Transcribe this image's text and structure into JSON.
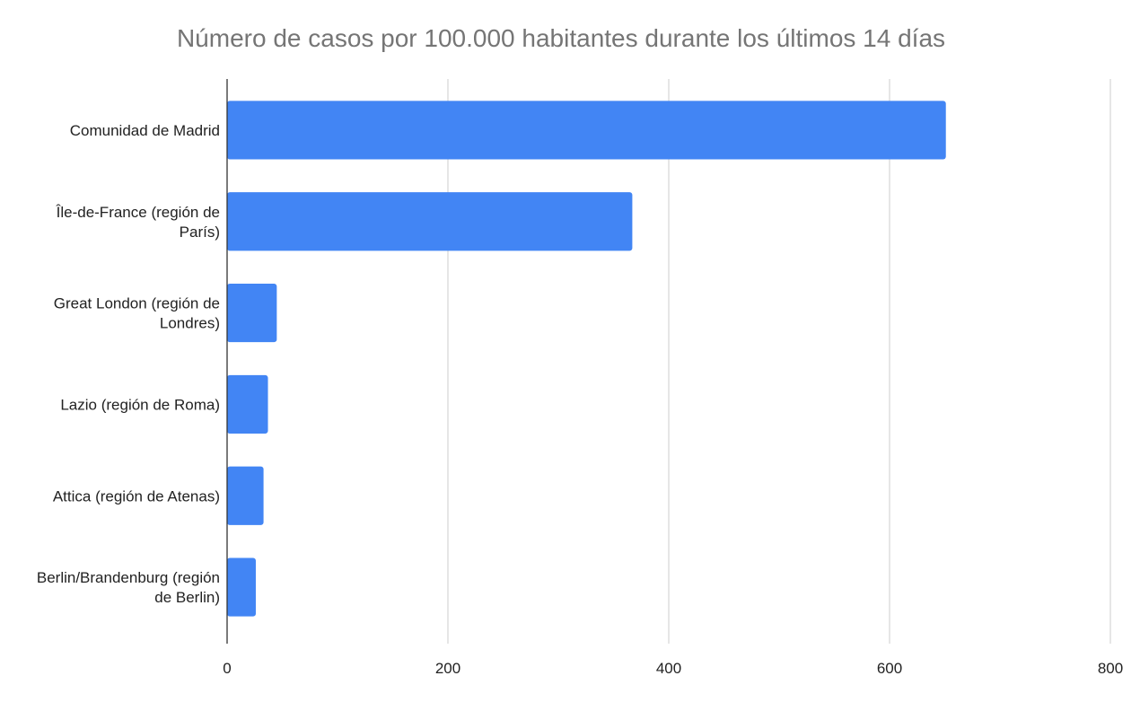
{
  "chart_data": {
    "type": "bar",
    "orientation": "horizontal",
    "title": "Número de casos por 100.000 habitantes durante los últimos 14 días",
    "xlabel": "",
    "ylabel": "",
    "categories": [
      [
        "Comunidad de Madrid"
      ],
      [
        "Île-de-France (región de",
        "París)"
      ],
      [
        "Great London (región de",
        "Londres)"
      ],
      [
        "Lazio (región de Roma)"
      ],
      [
        "Attica (región de Atenas)"
      ],
      [
        "Berlin/Brandenburg (región",
        "de Berlin)"
      ]
    ],
    "series": [
      {
        "values": [
          651,
          367,
          45,
          37,
          33,
          26
        ],
        "color": "#4285f4"
      }
    ],
    "xlim": [
      0,
      800
    ],
    "xticks": [
      0,
      200,
      400,
      600,
      800
    ],
    "xtick_labels": [
      "0",
      "200",
      "400",
      "600",
      "800"
    ],
    "grid": true,
    "legend": "none"
  }
}
